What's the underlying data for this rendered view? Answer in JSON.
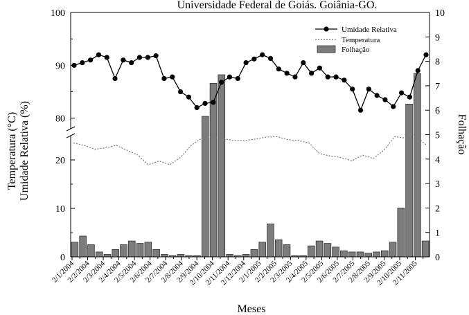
{
  "top_caption": "Universidade Federal de Goiás. Goiânia-GO.",
  "chart_data": {
    "type": "bar",
    "xlabel": "Meses",
    "ylabel_left_line1": "Temperatura (°C)",
    "ylabel_left_line2": "Umidade Relativa (%)",
    "ylabel_right": "Folhação",
    "left_axis_lower_range": [
      0,
      25
    ],
    "left_axis_upper_range": [
      78,
      100
    ],
    "left_axis_ticks": [
      "0",
      "10",
      "20",
      "80",
      "90",
      "100"
    ],
    "right_axis_range": [
      0,
      10
    ],
    "right_axis_ticks": [
      "0",
      "1",
      "2",
      "3",
      "4",
      "5",
      "6",
      "7",
      "8",
      "9",
      "10"
    ],
    "x_tick_labels": [
      "2/1/2004",
      "2/2/2004",
      "2/3/2004",
      "2/4/2004",
      "2/5/2004",
      "2/6/2004",
      "2/7/2004",
      "2/8/2004",
      "2/9/2004",
      "2/10/2004",
      "2/11/2004",
      "2/12/2004",
      "2/1/2005",
      "2/2/2005",
      "2/3/2005",
      "2/4/2005",
      "2/5/2005",
      "2/6/2005",
      "2/7/2005",
      "2/8/2005",
      "2/9/2005",
      "2/10/2005",
      "2/11/2005"
    ],
    "legend_position": "top-right",
    "series": [
      {
        "name": "Umidade Relativa",
        "type": "line",
        "axis": "left",
        "values": [
          90.0,
          90.5,
          91.0,
          92.0,
          91.5,
          87.5,
          91.0,
          90.5,
          91.5,
          91.5,
          91.8,
          87.5,
          87.8,
          85.0,
          84.0,
          82.0,
          82.8,
          83.0,
          86.8,
          87.8,
          87.5,
          90.5,
          91.2,
          92.0,
          91.3,
          89.3,
          88.5,
          87.8,
          90.5,
          88.5,
          89.5,
          87.8,
          87.8,
          87.2,
          85.5,
          81.5,
          85.5,
          84.3,
          83.5,
          82.2,
          84.8,
          84.0,
          89.0,
          92.0
        ]
      },
      {
        "name": "Temperatura",
        "type": "line",
        "axis": "left",
        "values": [
          23.5,
          23.0,
          22.2,
          22.5,
          23.0,
          22.0,
          21.0,
          19.0,
          19.8,
          19.0,
          20.5,
          23.0,
          24.5,
          24.8,
          24.4,
          24.0,
          24.0,
          24.3,
          24.7,
          24.8,
          24.2,
          24.0,
          23.5,
          21.3,
          20.8,
          20.5,
          19.8,
          21.0,
          20.3,
          22.0,
          24.8,
          24.5,
          24.8,
          23.0
        ]
      },
      {
        "name": "Folhação",
        "type": "bar",
        "axis": "right",
        "values": [
          0.6,
          0.85,
          0.5,
          0.2,
          0.1,
          0.3,
          0.5,
          0.65,
          0.55,
          0.6,
          0.3,
          0.1,
          0.05,
          0.1,
          0.05,
          0.05,
          5.75,
          7.1,
          7.45,
          0.1,
          0.05,
          0.1,
          0.3,
          0.6,
          1.35,
          0.7,
          0.5,
          0.05,
          0.05,
          0.45,
          0.65,
          0.55,
          0.4,
          0.25,
          0.2,
          0.2,
          0.15,
          0.2,
          0.25,
          0.6,
          2.0,
          6.25,
          7.5,
          0.65
        ]
      }
    ]
  }
}
